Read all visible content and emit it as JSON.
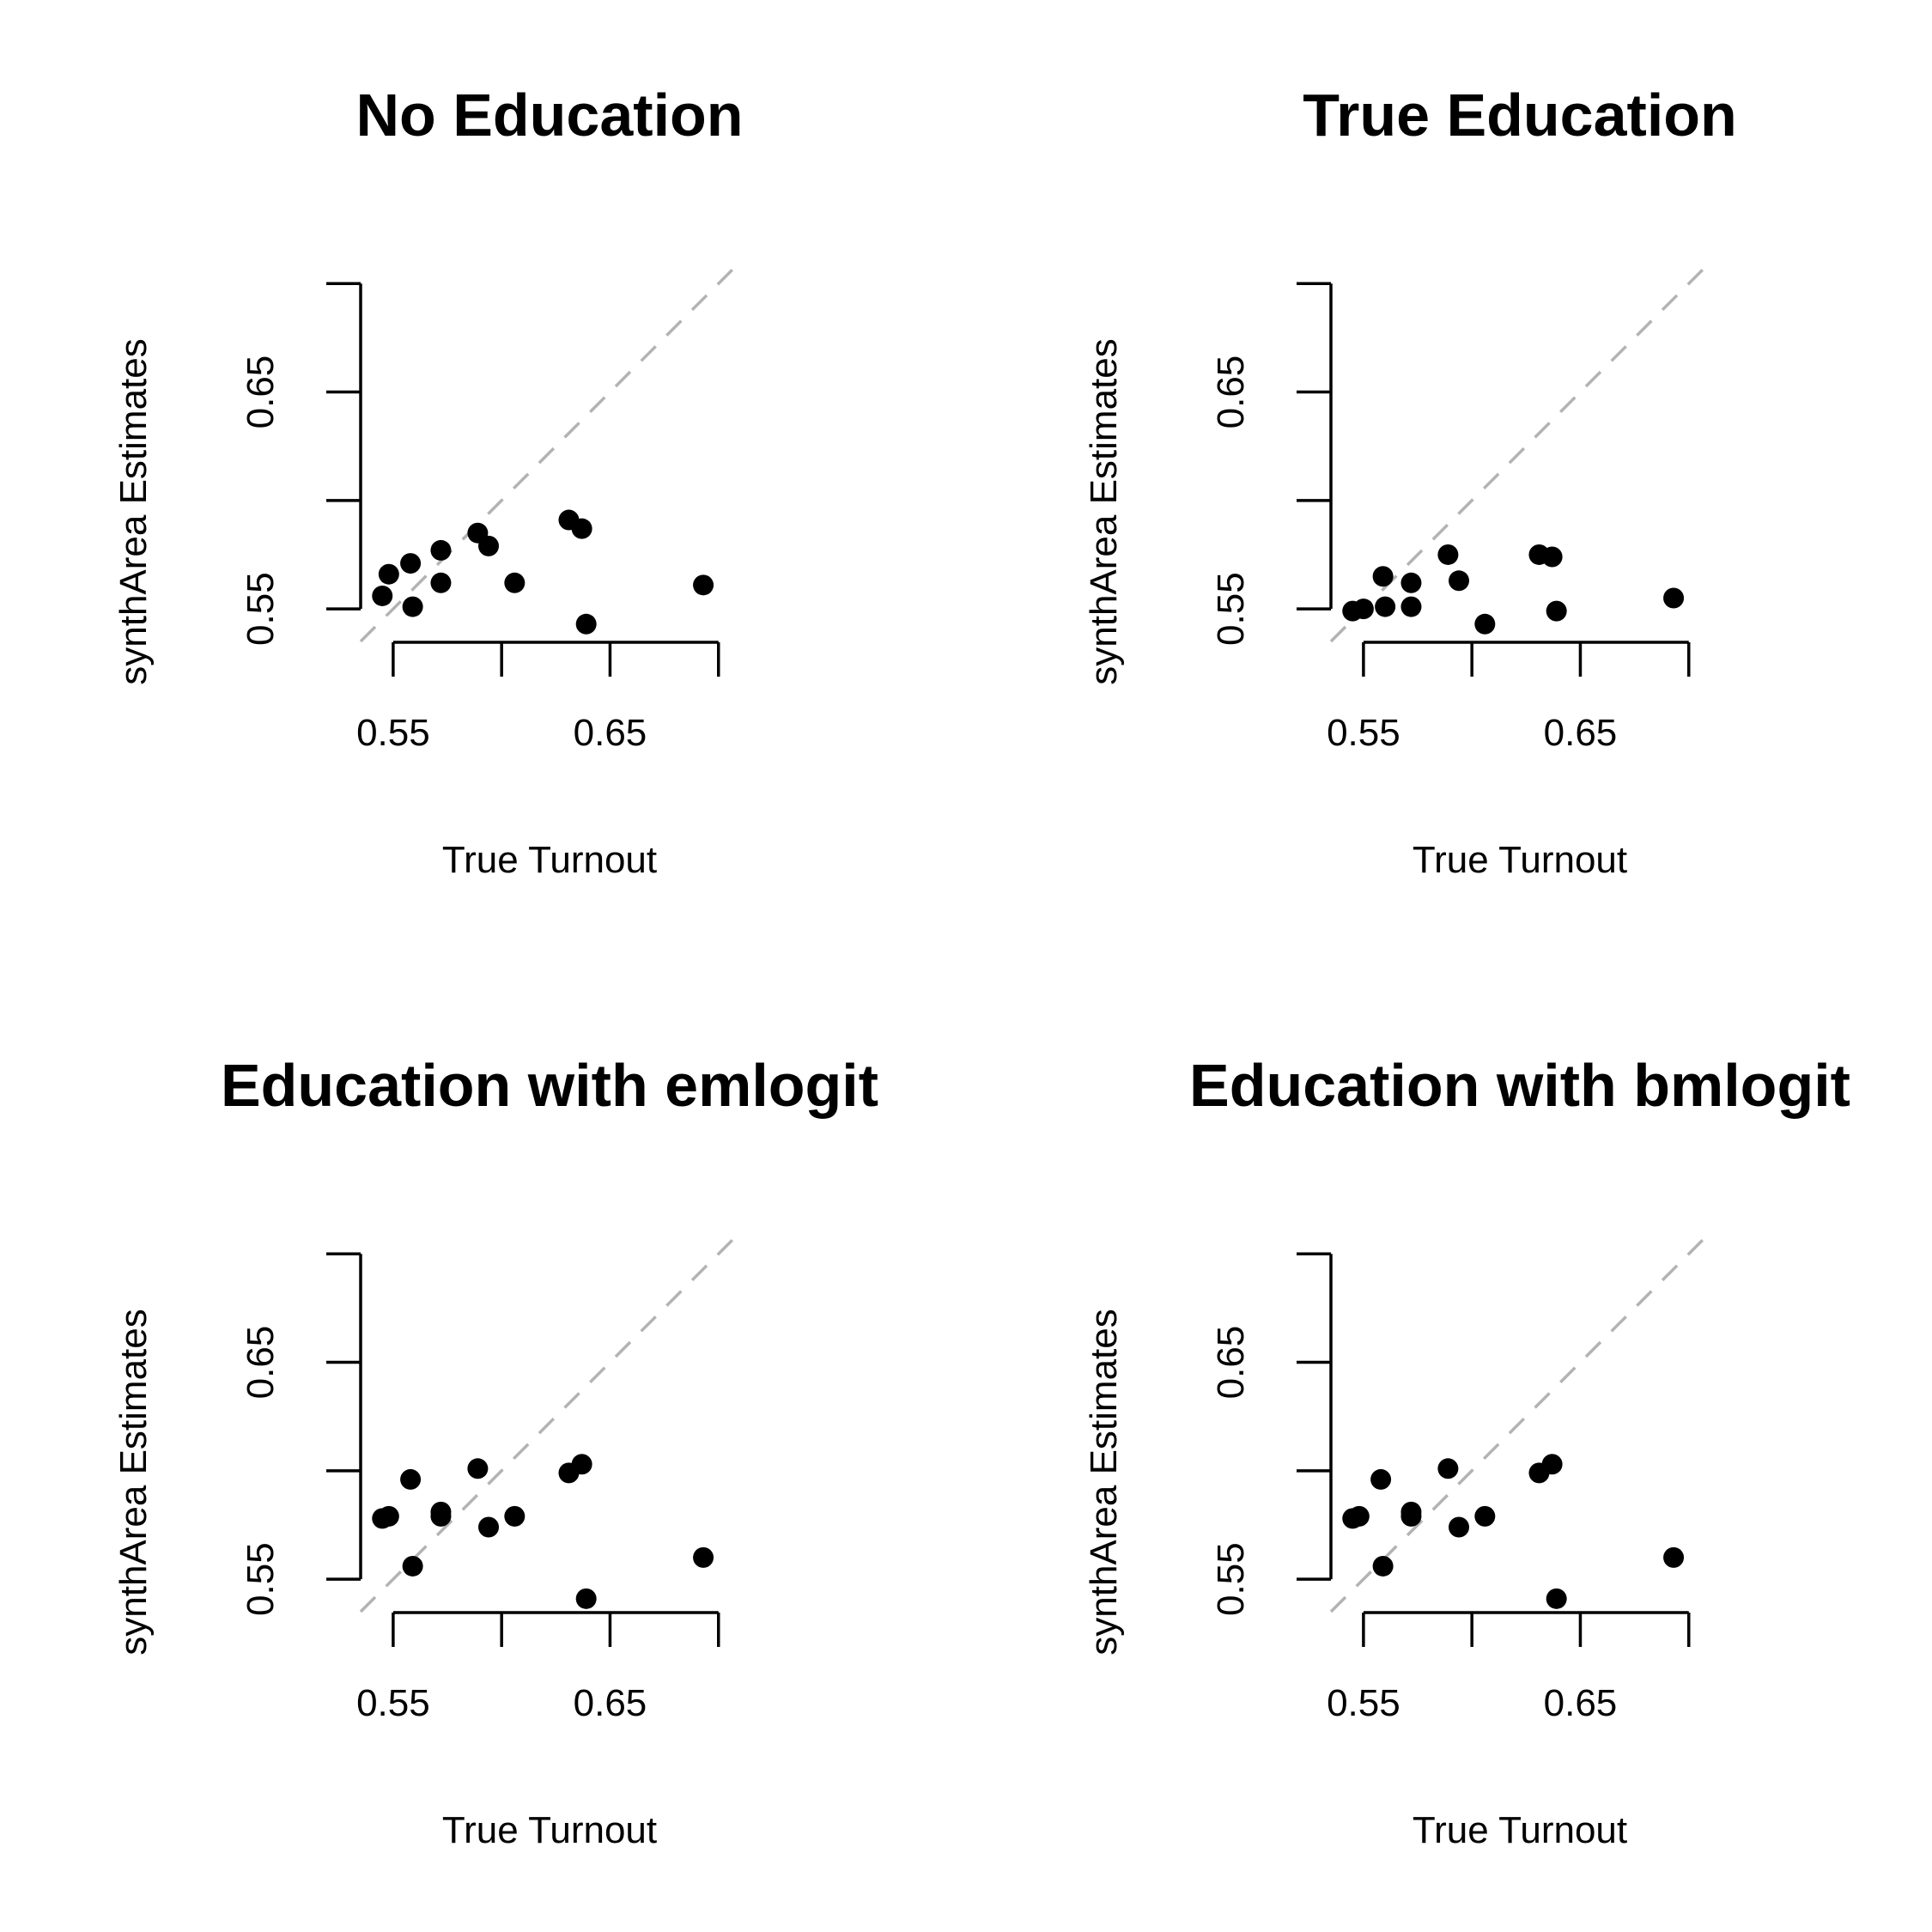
{
  "chart_data": [
    {
      "type": "scatter",
      "title": "No Education",
      "xlabel": "True Turnout",
      "ylabel": "synthArea Estimates",
      "xlim": [
        0.535,
        0.71
      ],
      "ylim": [
        0.535,
        0.71
      ],
      "xticks": [
        0.55,
        0.6,
        0.65,
        0.7
      ],
      "yticks": [
        0.55,
        0.6,
        0.65,
        0.7
      ],
      "xtick_labels": [
        "0.55",
        "",
        "0.65",
        ""
      ],
      "ytick_labels": [
        "0.55",
        "",
        "0.65",
        ""
      ],
      "reference_line": "y = x (dashed gray)",
      "x": [
        0.545,
        0.548,
        0.558,
        0.559,
        0.572,
        0.572,
        0.589,
        0.594,
        0.606,
        0.631,
        0.637,
        0.639,
        0.693
      ],
      "y": [
        0.556,
        0.566,
        0.571,
        0.551,
        0.562,
        0.577,
        0.585,
        0.579,
        0.562,
        0.591,
        0.587,
        0.543,
        0.561
      ]
    },
    {
      "type": "scatter",
      "title": "True Education",
      "xlabel": "True Turnout",
      "ylabel": "synthArea Estimates",
      "xlim": [
        0.535,
        0.71
      ],
      "ylim": [
        0.535,
        0.71
      ],
      "xticks": [
        0.55,
        0.6,
        0.65,
        0.7
      ],
      "yticks": [
        0.55,
        0.6,
        0.65,
        0.7
      ],
      "xtick_labels": [
        "0.55",
        "",
        "0.65",
        ""
      ],
      "ytick_labels": [
        "0.55",
        "",
        "0.65",
        ""
      ],
      "reference_line": "y = x (dashed gray)",
      "x": [
        0.545,
        0.55,
        0.559,
        0.56,
        0.572,
        0.572,
        0.589,
        0.594,
        0.606,
        0.631,
        0.637,
        0.639,
        0.693
      ],
      "y": [
        0.549,
        0.55,
        0.565,
        0.551,
        0.562,
        0.551,
        0.575,
        0.563,
        0.543,
        0.575,
        0.574,
        0.549,
        0.555
      ]
    },
    {
      "type": "scatter",
      "title": "Education with emlogit",
      "xlabel": "True Turnout",
      "ylabel": "synthArea Estimates",
      "xlim": [
        0.535,
        0.71
      ],
      "ylim": [
        0.535,
        0.71
      ],
      "xticks": [
        0.55,
        0.6,
        0.65,
        0.7
      ],
      "yticks": [
        0.55,
        0.6,
        0.65,
        0.7
      ],
      "xtick_labels": [
        "0.55",
        "",
        "0.65",
        ""
      ],
      "ytick_labels": [
        "0.55",
        "",
        "0.65",
        ""
      ],
      "reference_line": "y = x (dashed gray)",
      "x": [
        0.545,
        0.548,
        0.558,
        0.559,
        0.572,
        0.572,
        0.589,
        0.594,
        0.606,
        0.631,
        0.637,
        0.639,
        0.693
      ],
      "y": [
        0.578,
        0.579,
        0.596,
        0.556,
        0.579,
        0.581,
        0.601,
        0.574,
        0.579,
        0.599,
        0.603,
        0.541,
        0.56
      ]
    },
    {
      "type": "scatter",
      "title": "Education with bmlogit",
      "xlabel": "True Turnout",
      "ylabel": "synthArea Estimates",
      "xlim": [
        0.535,
        0.71
      ],
      "ylim": [
        0.535,
        0.71
      ],
      "xticks": [
        0.55,
        0.6,
        0.65,
        0.7
      ],
      "yticks": [
        0.55,
        0.6,
        0.65,
        0.7
      ],
      "xtick_labels": [
        "0.55",
        "",
        "0.65",
        ""
      ],
      "ytick_labels": [
        "0.55",
        "",
        "0.65",
        ""
      ],
      "reference_line": "y = x (dashed gray)",
      "x": [
        0.545,
        0.548,
        0.558,
        0.559,
        0.572,
        0.572,
        0.589,
        0.594,
        0.606,
        0.631,
        0.637,
        0.639,
        0.693
      ],
      "y": [
        0.578,
        0.579,
        0.596,
        0.556,
        0.579,
        0.581,
        0.601,
        0.574,
        0.579,
        0.599,
        0.603,
        0.541,
        0.56
      ]
    }
  ]
}
